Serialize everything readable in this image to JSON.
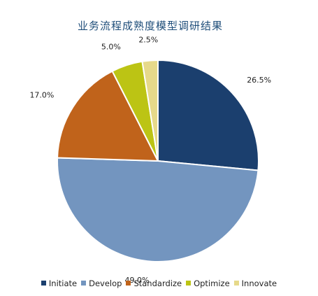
{
  "chart_data": {
    "type": "pie",
    "title": "业务流程成熟度模型调研结果",
    "categories": [
      "Initiate",
      "Develop",
      "Standardize",
      "Optimize",
      "Innovate"
    ],
    "values": [
      26.5,
      49.0,
      17.0,
      5.0,
      2.5
    ],
    "value_labels": [
      "26.5%",
      "49.0%",
      "17.0%",
      "5.0%",
      "2.5%"
    ],
    "colors": [
      "#1b3f6e",
      "#7395bf",
      "#c0631b",
      "#bcc414",
      "#e6d98a"
    ],
    "start_angle": "12 o'clock",
    "direction": "clockwise",
    "legend": "bottom"
  }
}
